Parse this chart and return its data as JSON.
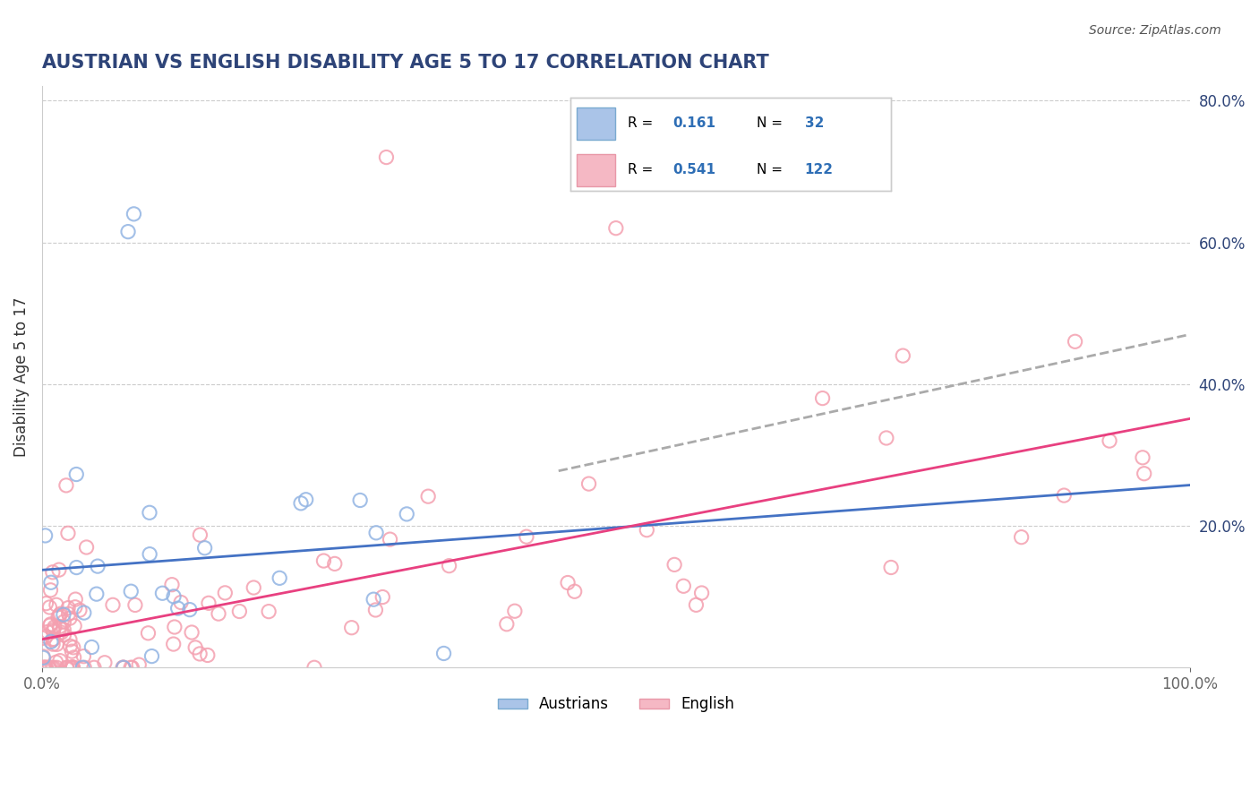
{
  "title": "AUSTRIAN VS ENGLISH DISABILITY AGE 5 TO 17 CORRELATION CHART",
  "source": "Source: ZipAtlas.com",
  "xlabel": "",
  "ylabel": "Disability Age 5 to 17",
  "legend_bottom": [
    "Austrians",
    "English"
  ],
  "austrian_R": 0.161,
  "austrian_N": 32,
  "english_R": 0.541,
  "english_N": 122,
  "austrian_color": "#92b4e3",
  "english_color": "#f4a0b0",
  "austrian_line_color": "#4472c4",
  "english_line_color": "#e84080",
  "regression_line_color": "#aaaaaa",
  "title_color": "#2e4478",
  "source_color": "#555555",
  "background_color": "#ffffff",
  "xlim": [
    0,
    100
  ],
  "ylim": [
    0,
    82
  ],
  "ytick_values": [
    20,
    40,
    60,
    80
  ]
}
